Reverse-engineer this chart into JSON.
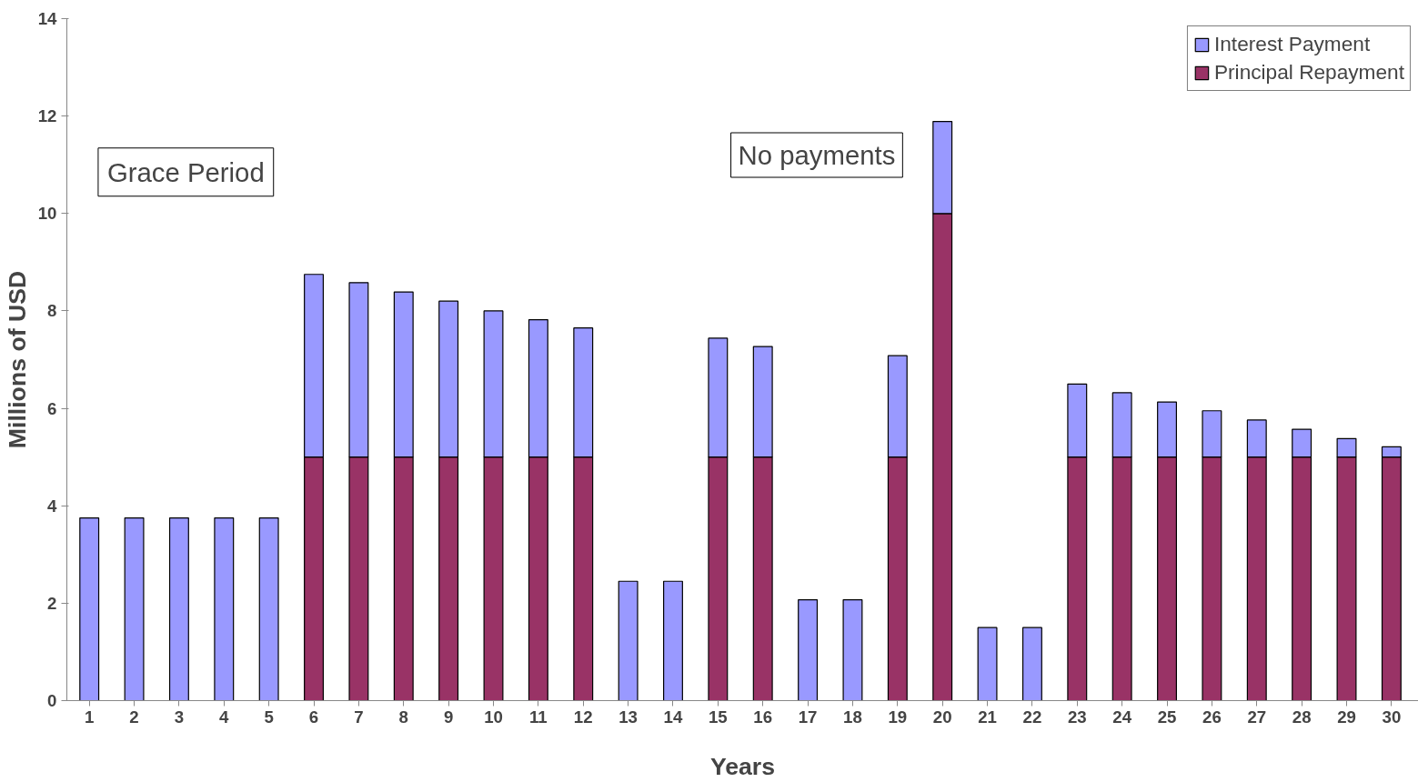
{
  "chart_data": {
    "type": "bar",
    "stacked": true,
    "xlabel": "Years",
    "ylabel": "Millions of USD",
    "x": [
      1,
      2,
      3,
      4,
      5,
      6,
      7,
      8,
      9,
      10,
      11,
      12,
      13,
      14,
      15,
      16,
      17,
      18,
      19,
      20,
      21,
      22,
      23,
      24,
      25,
      26,
      27,
      28,
      29,
      30
    ],
    "xlim": [
      0.5,
      30.6
    ],
    "xticks": [
      1,
      2,
      3,
      4,
      5,
      6,
      7,
      8,
      9,
      10,
      11,
      12,
      13,
      14,
      15,
      16,
      17,
      18,
      19,
      20,
      21,
      22,
      23,
      24,
      25,
      26,
      27,
      28,
      29,
      30
    ],
    "series": [
      {
        "name": "Principal Repayment",
        "color": "#993366",
        "values": [
          0,
          0,
          0,
          0,
          0,
          5,
          5,
          5,
          5,
          5,
          5,
          5,
          0,
          0,
          5,
          5,
          0,
          0,
          5,
          10,
          0,
          0,
          5,
          5,
          5,
          5,
          5,
          5,
          5,
          5
        ]
      },
      {
        "name": "Interest Payment",
        "color": "#9999ff",
        "values": [
          3.75,
          3.75,
          3.75,
          3.75,
          3.75,
          3.75,
          3.58,
          3.39,
          3.2,
          3.0,
          2.82,
          2.65,
          2.45,
          2.45,
          2.44,
          2.27,
          2.07,
          2.07,
          2.08,
          1.89,
          1.5,
          1.5,
          1.5,
          1.32,
          1.13,
          0.95,
          0.76,
          0.57,
          0.38,
          0.21
        ]
      }
    ],
    "ylim": [
      0,
      14
    ],
    "yticks": [
      0,
      2,
      4,
      6,
      8,
      10,
      12,
      14
    ],
    "grid": false,
    "legend": "top right",
    "annotations": [
      "Grace Period",
      "No payments"
    ]
  }
}
